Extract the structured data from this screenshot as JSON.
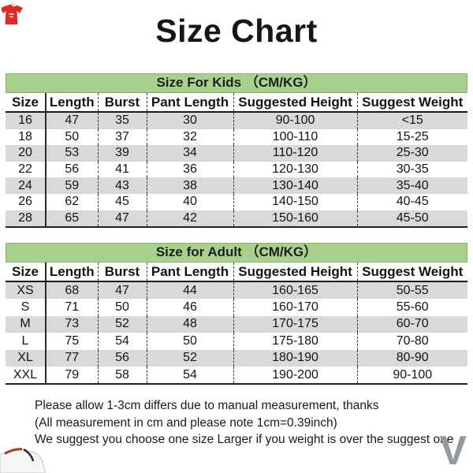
{
  "page": {
    "title": "Size Chart"
  },
  "tables": [
    {
      "id": "kids",
      "header": "Size For Kids （CM/KG）",
      "columns": [
        "Size",
        "Length",
        "Burst",
        "Pant Length",
        "Suggested Height",
        "Suggest Weight"
      ],
      "rows": [
        [
          "16",
          "47",
          "35",
          "30",
          "90-100",
          "<15"
        ],
        [
          "18",
          "50",
          "37",
          "32",
          "100-110",
          "15-25"
        ],
        [
          "20",
          "53",
          "39",
          "34",
          "110-120",
          "25-30"
        ],
        [
          "22",
          "56",
          "41",
          "36",
          "120-130",
          "30-35"
        ],
        [
          "24",
          "59",
          "43",
          "38",
          "130-140",
          "35-40"
        ],
        [
          "26",
          "62",
          "45",
          "40",
          "140-150",
          "40-45"
        ],
        [
          "28",
          "65",
          "47",
          "42",
          "150-160",
          "45-50"
        ]
      ]
    },
    {
      "id": "adult",
      "header": "Size for Adult （CM/KG）",
      "columns": [
        "Size",
        "Length",
        "Burst",
        "Pant Length",
        "Suggested Height",
        "Suggest Weight"
      ],
      "rows": [
        [
          "XS",
          "68",
          "47",
          "44",
          "160-165",
          "50-55"
        ],
        [
          "S",
          "71",
          "50",
          "46",
          "160-170",
          "55-60"
        ],
        [
          "M",
          "73",
          "52",
          "48",
          "170-175",
          "60-70"
        ],
        [
          "L",
          "75",
          "54",
          "50",
          "175-180",
          "70-80"
        ],
        [
          "XL",
          "77",
          "56",
          "52",
          "180-190",
          "80-90"
        ],
        [
          "XXL",
          "79",
          "58",
          "54",
          "190-200",
          "90-100"
        ]
      ]
    }
  ],
  "notes": [
    "Please allow 1-3cm differs due to manual measurement, thanks",
    "(All measurement in cm and please note 1cm=0.39inch)",
    "We suggest you choose one size Larger if you weight is over the suggest one"
  ],
  "decorations": {
    "watermark_letter": "V"
  },
  "colors": {
    "header_green": "#a9d18e",
    "row_stripe": "#d9d9d9",
    "jersey_red": "#dd2a24",
    "watermark_gray": "#939aa2"
  }
}
